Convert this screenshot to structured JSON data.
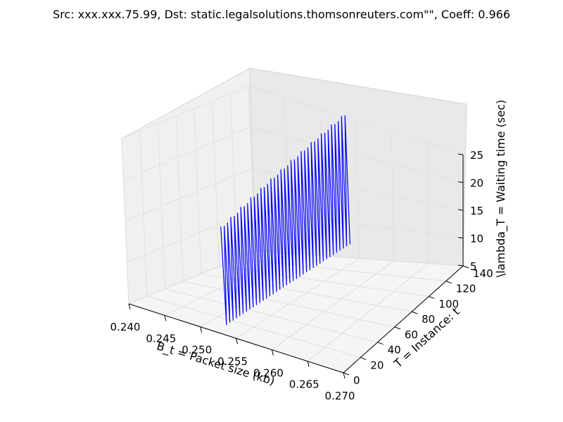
{
  "chart_data": {
    "type": "line",
    "projection": "3d",
    "title": "Src: xxx.xxx.75.99, Dst: static.legalsolutions.thomsonreuters.com\"\", Coeff: 0.966",
    "xlabel": "B_t = Packet size (kb)",
    "ylabel": "T = Instance: t",
    "zlabel": "\\lambda_T = Waiting time (sec)",
    "xlim": [
      0.24,
      0.27
    ],
    "ylim": [
      0,
      140
    ],
    "zlim": [
      5,
      25
    ],
    "x_ticks": [
      "0.240",
      "0.245",
      "0.250",
      "0.255",
      "0.260",
      "0.265",
      "0.270"
    ],
    "y_ticks": [
      "0",
      "20",
      "40",
      "60",
      "80",
      "100",
      "120",
      "140"
    ],
    "z_ticks": [
      "5",
      "10",
      "15",
      "20",
      "25"
    ],
    "grid": true,
    "series": [
      {
        "color": "#0000ff",
        "x_constant": 0.2535,
        "t_range": [
          0,
          140
        ],
        "spikes": 38,
        "peak_start": 17.8,
        "peak_end": 25.2,
        "trough_start": 6.1,
        "trough_end": 6.8
      }
    ]
  }
}
